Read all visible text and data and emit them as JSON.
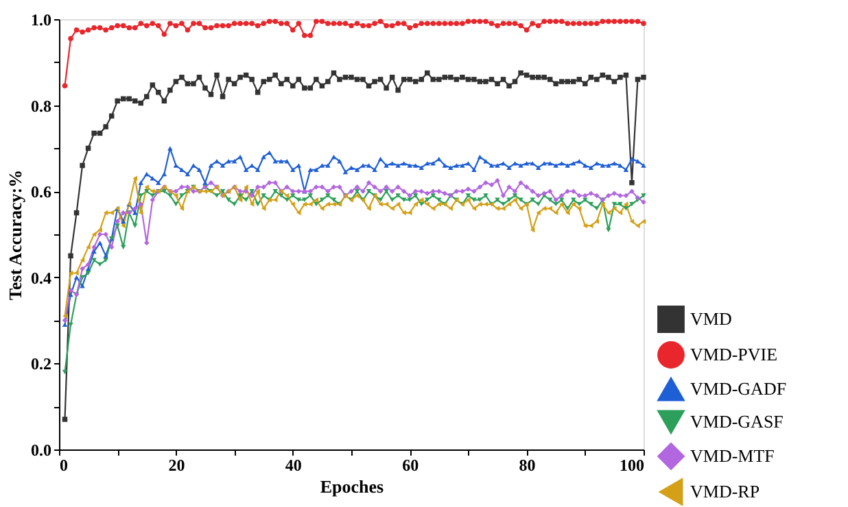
{
  "chart_data": {
    "type": "line",
    "xlabel": "Epoches",
    "ylabel": "Test Accuracy:%",
    "xlim": [
      0,
      100
    ],
    "ylim": [
      0,
      1.0
    ],
    "xticks": [
      0,
      {
        "value": 10,
        "label": null
      },
      20,
      {
        "value": 30,
        "label": null
      },
      40,
      {
        "value": 50,
        "label": null
      },
      60,
      {
        "value": 70,
        "label": null
      },
      80,
      {
        "value": 90,
        "label": null
      },
      100
    ],
    "yticks": [
      {
        "value": 0,
        "label": "0.0"
      },
      {
        "value": 0.1,
        "label": null
      },
      0.2,
      {
        "value": 0.3,
        "label": null
      },
      0.4,
      {
        "value": 0.5,
        "label": null
      },
      0.6,
      {
        "value": 0.7,
        "label": null
      },
      0.8,
      {
        "value": 0.9,
        "label": null
      },
      {
        "value": 1.0,
        "label": "1.0"
      }
    ],
    "grid": false,
    "legend": "bottom right",
    "line_style": "solid",
    "x": [
      1,
      2,
      3,
      4,
      5,
      6,
      7,
      8,
      9,
      10,
      11,
      12,
      13,
      14,
      15,
      16,
      17,
      18,
      19,
      20,
      21,
      22,
      23,
      24,
      25,
      26,
      27,
      28,
      29,
      30,
      31,
      32,
      33,
      34,
      35,
      36,
      37,
      38,
      39,
      40,
      41,
      42,
      43,
      44,
      45,
      46,
      47,
      48,
      49,
      50,
      51,
      52,
      53,
      54,
      55,
      56,
      57,
      58,
      59,
      60,
      61,
      62,
      63,
      64,
      65,
      66,
      67,
      68,
      69,
      70,
      71,
      72,
      73,
      74,
      75,
      76,
      77,
      78,
      79,
      80,
      81,
      82,
      83,
      84,
      85,
      86,
      87,
      88,
      89,
      90,
      91,
      92,
      93,
      94,
      95,
      96,
      97,
      98,
      99,
      100
    ],
    "series": [
      {
        "name": "VMD",
        "color": "#333333",
        "marker": "square",
        "values": [
          0.07,
          0.45,
          0.55,
          0.66,
          0.7,
          0.735,
          0.735,
          0.75,
          0.775,
          0.81,
          0.815,
          0.815,
          0.81,
          0.805,
          0.82,
          0.847,
          0.83,
          0.81,
          0.835,
          0.855,
          0.865,
          0.85,
          0.85,
          0.865,
          0.84,
          0.825,
          0.87,
          0.82,
          0.86,
          0.85,
          0.865,
          0.87,
          0.86,
          0.83,
          0.855,
          0.86,
          0.87,
          0.85,
          0.86,
          0.845,
          0.86,
          0.84,
          0.84,
          0.86,
          0.845,
          0.855,
          0.875,
          0.86,
          0.865,
          0.865,
          0.86,
          0.86,
          0.845,
          0.855,
          0.86,
          0.84,
          0.865,
          0.835,
          0.86,
          0.86,
          0.855,
          0.86,
          0.875,
          0.86,
          0.86,
          0.865,
          0.865,
          0.86,
          0.865,
          0.86,
          0.86,
          0.855,
          0.855,
          0.86,
          0.85,
          0.86,
          0.845,
          0.855,
          0.875,
          0.87,
          0.865,
          0.865,
          0.865,
          0.86,
          0.85,
          0.855,
          0.855,
          0.855,
          0.86,
          0.85,
          0.865,
          0.86,
          0.87,
          0.865,
          0.855,
          0.865,
          0.87,
          0.62,
          0.86,
          0.865
        ]
      },
      {
        "name": "VMD-PVIE",
        "color": "#e8262b",
        "marker": "circle",
        "values": [
          0.845,
          0.955,
          0.975,
          0.97,
          0.975,
          0.98,
          0.98,
          0.975,
          0.98,
          0.985,
          0.985,
          0.98,
          0.98,
          0.99,
          0.985,
          0.99,
          0.985,
          0.965,
          0.99,
          0.985,
          0.99,
          0.975,
          0.99,
          0.99,
          0.98,
          0.98,
          0.985,
          0.985,
          0.985,
          0.99,
          0.99,
          0.99,
          0.99,
          0.985,
          0.99,
          0.995,
          0.995,
          0.99,
          0.99,
          0.975,
          0.99,
          0.962,
          0.962,
          0.995,
          0.995,
          0.99,
          0.99,
          0.99,
          0.99,
          0.985,
          0.99,
          0.985,
          0.985,
          0.99,
          0.995,
          0.985,
          0.985,
          0.99,
          0.99,
          0.98,
          0.985,
          0.99,
          0.99,
          0.99,
          0.99,
          0.99,
          0.99,
          0.99,
          0.99,
          0.995,
          0.995,
          0.995,
          0.995,
          0.99,
          0.985,
          0.99,
          0.99,
          0.99,
          0.985,
          0.975,
          0.99,
          0.985,
          0.995,
          0.995,
          0.995,
          0.995,
          0.99,
          0.99,
          0.99,
          0.99,
          0.99,
          0.99,
          0.995,
          0.995,
          0.995,
          0.995,
          0.995,
          0.995,
          0.995,
          0.99
        ]
      },
      {
        "name": "VMD-GADF",
        "color": "#1f5fd6",
        "marker": "triangle-up",
        "values": [
          0.29,
          0.36,
          0.4,
          0.38,
          0.42,
          0.46,
          0.48,
          0.45,
          0.49,
          0.56,
          0.53,
          0.57,
          0.55,
          0.62,
          0.64,
          0.63,
          0.62,
          0.64,
          0.7,
          0.66,
          0.65,
          0.64,
          0.66,
          0.65,
          0.62,
          0.66,
          0.67,
          0.66,
          0.67,
          0.67,
          0.68,
          0.65,
          0.66,
          0.65,
          0.68,
          0.69,
          0.67,
          0.67,
          0.67,
          0.65,
          0.66,
          0.6,
          0.65,
          0.65,
          0.66,
          0.66,
          0.68,
          0.67,
          0.645,
          0.655,
          0.65,
          0.66,
          0.66,
          0.65,
          0.675,
          0.66,
          0.665,
          0.66,
          0.665,
          0.66,
          0.66,
          0.655,
          0.665,
          0.665,
          0.675,
          0.66,
          0.655,
          0.66,
          0.66,
          0.665,
          0.65,
          0.68,
          0.67,
          0.66,
          0.66,
          0.665,
          0.655,
          0.665,
          0.66,
          0.665,
          0.665,
          0.655,
          0.665,
          0.665,
          0.66,
          0.665,
          0.66,
          0.665,
          0.67,
          0.66,
          0.655,
          0.665,
          0.66,
          0.66,
          0.665,
          0.66,
          0.65,
          0.675,
          0.67,
          0.66
        ]
      },
      {
        "name": "VMD-GASF",
        "color": "#2ca05a",
        "marker": "triangle-down",
        "values": [
          0.18,
          0.29,
          0.36,
          0.4,
          0.41,
          0.44,
          0.43,
          0.44,
          0.49,
          0.52,
          0.47,
          0.55,
          0.52,
          0.59,
          0.6,
          0.59,
          0.6,
          0.6,
          0.59,
          0.57,
          0.59,
          0.6,
          0.61,
          0.6,
          0.61,
          0.6,
          0.59,
          0.6,
          0.58,
          0.57,
          0.59,
          0.58,
          0.6,
          0.57,
          0.59,
          0.58,
          0.6,
          0.59,
          0.58,
          0.59,
          0.58,
          0.58,
          0.59,
          0.57,
          0.58,
          0.59,
          0.58,
          0.57,
          0.59,
          0.58,
          0.6,
          0.58,
          0.6,
          0.59,
          0.58,
          0.6,
          0.58,
          0.59,
          0.58,
          0.58,
          0.59,
          0.57,
          0.58,
          0.59,
          0.58,
          0.57,
          0.59,
          0.58,
          0.57,
          0.59,
          0.58,
          0.58,
          0.59,
          0.57,
          0.58,
          0.57,
          0.58,
          0.59,
          0.58,
          0.57,
          0.58,
          0.57,
          0.59,
          0.58,
          0.57,
          0.58,
          0.56,
          0.58,
          0.57,
          0.58,
          0.57,
          0.56,
          0.58,
          0.51,
          0.57,
          0.57,
          0.56,
          0.57,
          0.58,
          0.59
        ]
      },
      {
        "name": "VMD-MTF",
        "color": "#b266e0",
        "marker": "diamond",
        "values": [
          0.3,
          0.37,
          0.36,
          0.42,
          0.43,
          0.47,
          0.5,
          0.5,
          0.47,
          0.53,
          0.55,
          0.55,
          0.56,
          0.57,
          0.48,
          0.58,
          0.6,
          0.61,
          0.6,
          0.6,
          0.61,
          0.61,
          0.6,
          0.6,
          0.61,
          0.62,
          0.61,
          0.59,
          0.6,
          0.61,
          0.6,
          0.6,
          0.59,
          0.61,
          0.61,
          0.62,
          0.62,
          0.6,
          0.61,
          0.6,
          0.6,
          0.6,
          0.6,
          0.61,
          0.61,
          0.6,
          0.61,
          0.61,
          0.59,
          0.6,
          0.61,
          0.6,
          0.62,
          0.61,
          0.6,
          0.61,
          0.6,
          0.61,
          0.6,
          0.59,
          0.6,
          0.6,
          0.595,
          0.6,
          0.6,
          0.595,
          0.59,
          0.6,
          0.6,
          0.605,
          0.6,
          0.61,
          0.62,
          0.615,
          0.625,
          0.59,
          0.61,
          0.6,
          0.62,
          0.61,
          0.6,
          0.59,
          0.595,
          0.6,
          0.58,
          0.59,
          0.6,
          0.6,
          0.59,
          0.59,
          0.595,
          0.59,
          0.58,
          0.59,
          0.595,
          0.59,
          0.59,
          0.6,
          0.585,
          0.575
        ]
      },
      {
        "name": "VMD-RP",
        "color": "#d4a017",
        "marker": "triangle-left",
        "values": [
          0.31,
          0.41,
          0.41,
          0.44,
          0.47,
          0.5,
          0.51,
          0.55,
          0.55,
          0.56,
          0.52,
          0.57,
          0.63,
          0.55,
          0.61,
          0.6,
          0.6,
          0.61,
          0.6,
          0.59,
          0.56,
          0.6,
          0.61,
          0.6,
          0.6,
          0.6,
          0.61,
          0.59,
          0.6,
          0.61,
          0.58,
          0.61,
          0.57,
          0.6,
          0.56,
          0.58,
          0.58,
          0.6,
          0.59,
          0.57,
          0.55,
          0.57,
          0.57,
          0.58,
          0.56,
          0.57,
          0.57,
          0.57,
          0.59,
          0.58,
          0.59,
          0.58,
          0.56,
          0.59,
          0.57,
          0.57,
          0.56,
          0.57,
          0.55,
          0.55,
          0.57,
          0.58,
          0.57,
          0.56,
          0.57,
          0.57,
          0.56,
          0.58,
          0.57,
          0.58,
          0.56,
          0.57,
          0.57,
          0.57,
          0.56,
          0.56,
          0.57,
          0.58,
          0.56,
          0.57,
          0.51,
          0.55,
          0.56,
          0.56,
          0.55,
          0.57,
          0.55,
          0.57,
          0.56,
          0.52,
          0.52,
          0.53,
          0.57,
          0.55,
          0.56,
          0.55,
          0.57,
          0.53,
          0.52,
          0.53
        ]
      }
    ]
  }
}
